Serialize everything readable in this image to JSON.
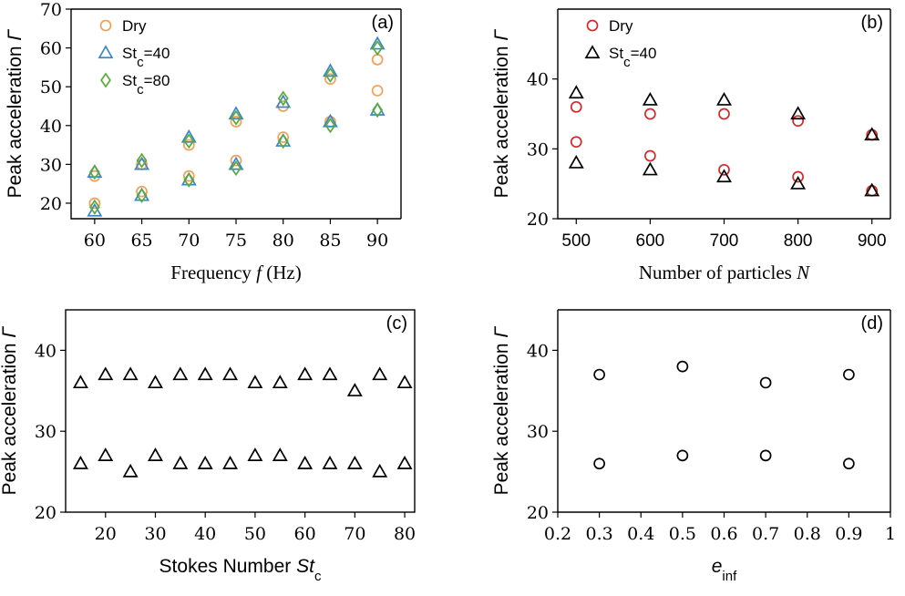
{
  "chart_data": [
    {
      "type": "scatter",
      "panel_label": "(a)",
      "xlabel_prefix": "Frequency ",
      "xlabel_var": "f",
      "xlabel_suffix": " (Hz)",
      "ylabel_prefix": "Peak acceleration ",
      "ylabel_var": "Γ",
      "xlim": [
        57.5,
        92.5
      ],
      "ylim": [
        16,
        70
      ],
      "xticks": [
        60,
        65,
        70,
        75,
        80,
        85,
        90
      ],
      "yticks": [
        20,
        30,
        40,
        50,
        60,
        70
      ],
      "legend_position": "top-left",
      "series": [
        {
          "name": "Dry",
          "marker": "circle",
          "color": "#f0a058",
          "points": [
            [
              60,
              20
            ],
            [
              60,
              27
            ],
            [
              65,
              23
            ],
            [
              65,
              30
            ],
            [
              70,
              27
            ],
            [
              70,
              35
            ],
            [
              75,
              31
            ],
            [
              75,
              41
            ],
            [
              80,
              37
            ],
            [
              80,
              45
            ],
            [
              85,
              41
            ],
            [
              85,
              52
            ],
            [
              90,
              49
            ],
            [
              90,
              57
            ]
          ]
        },
        {
          "name": "St_c=40",
          "marker": "triangle",
          "color": "#3a86c8",
          "points": [
            [
              60,
              18
            ],
            [
              60,
              28
            ],
            [
              65,
              22
            ],
            [
              65,
              30
            ],
            [
              70,
              26
            ],
            [
              70,
              37
            ],
            [
              75,
              30
            ],
            [
              75,
              43
            ],
            [
              80,
              36
            ],
            [
              80,
              46
            ],
            [
              85,
              41
            ],
            [
              85,
              54
            ],
            [
              90,
              44
            ],
            [
              90,
              61
            ]
          ]
        },
        {
          "name": "St_c=80",
          "marker": "diamond",
          "color": "#5aaa3a",
          "points": [
            [
              60,
              19
            ],
            [
              60,
              28
            ],
            [
              65,
              22
            ],
            [
              65,
              31
            ],
            [
              70,
              26
            ],
            [
              70,
              36
            ],
            [
              75,
              29
            ],
            [
              75,
              42
            ],
            [
              80,
              36
            ],
            [
              80,
              47
            ],
            [
              85,
              40
            ],
            [
              85,
              53
            ],
            [
              90,
              44
            ],
            [
              90,
              60
            ]
          ]
        }
      ]
    },
    {
      "type": "scatter",
      "panel_label": "(b)",
      "xlabel_prefix": "Number of particles ",
      "xlabel_var": "N",
      "xlabel_suffix": "",
      "ylabel_prefix": "Peak acceleration ",
      "ylabel_var": "Γ",
      "xlim": [
        475,
        925
      ],
      "ylim": [
        20,
        50
      ],
      "xticks": [
        500,
        600,
        700,
        800,
        900
      ],
      "yticks": [
        20,
        30,
        40
      ],
      "legend_position": "top-left",
      "series": [
        {
          "name": "Dry",
          "marker": "circle",
          "color": "#d62728",
          "points": [
            [
              500,
              31
            ],
            [
              500,
              36
            ],
            [
              600,
              29
            ],
            [
              600,
              35
            ],
            [
              700,
              27
            ],
            [
              700,
              35
            ],
            [
              800,
              26
            ],
            [
              800,
              34
            ],
            [
              900,
              24
            ],
            [
              900,
              32
            ]
          ]
        },
        {
          "name": "St_c=40",
          "marker": "triangle",
          "color": "#000000",
          "points": [
            [
              500,
              28
            ],
            [
              500,
              38
            ],
            [
              600,
              27
            ],
            [
              600,
              37
            ],
            [
              700,
              26
            ],
            [
              700,
              37
            ],
            [
              800,
              25
            ],
            [
              800,
              35
            ],
            [
              900,
              24
            ],
            [
              900,
              32
            ]
          ]
        }
      ]
    },
    {
      "type": "scatter",
      "panel_label": "(c)",
      "xlabel_prefix": "Stokes Number ",
      "xlabel_var": "St",
      "xlabel_sub": "c",
      "ylabel_prefix": "Peak acceleration ",
      "ylabel_var": "Γ",
      "xlim": [
        12,
        82
      ],
      "ylim": [
        20,
        45
      ],
      "xticks": [
        20,
        30,
        40,
        50,
        60,
        70,
        80
      ],
      "yticks": [
        20,
        30,
        40
      ],
      "series": [
        {
          "name": "",
          "marker": "triangle",
          "color": "#000000",
          "points": [
            [
              15,
              36
            ],
            [
              15,
              26
            ],
            [
              20,
              37
            ],
            [
              20,
              27
            ],
            [
              25,
              37
            ],
            [
              25,
              25
            ],
            [
              30,
              36
            ],
            [
              30,
              27
            ],
            [
              35,
              37
            ],
            [
              35,
              26
            ],
            [
              40,
              37
            ],
            [
              40,
              26
            ],
            [
              45,
              37
            ],
            [
              45,
              26
            ],
            [
              50,
              36
            ],
            [
              50,
              27
            ],
            [
              55,
              36
            ],
            [
              55,
              27
            ],
            [
              60,
              37
            ],
            [
              60,
              26
            ],
            [
              65,
              37
            ],
            [
              65,
              26
            ],
            [
              70,
              35
            ],
            [
              70,
              26
            ],
            [
              75,
              37
            ],
            [
              75,
              25
            ],
            [
              80,
              36
            ],
            [
              80,
              26
            ]
          ]
        }
      ]
    },
    {
      "type": "scatter",
      "panel_label": "(d)",
      "xlabel_prefix": "",
      "xlabel_var": "e",
      "xlabel_sub": "inf",
      "ylabel_prefix": "Peak acceleration ",
      "ylabel_var": "Γ",
      "xlim": [
        0.2,
        1.0
      ],
      "ylim": [
        20,
        45
      ],
      "xticks": [
        0.2,
        0.3,
        0.4,
        0.5,
        0.6,
        0.7,
        0.8,
        0.9,
        1
      ],
      "xtick_labels": [
        "0.2",
        "0.3",
        "0.4",
        "0.5",
        "0.6",
        "0.7",
        "0.8",
        "0.9",
        "1"
      ],
      "yticks": [
        20,
        30,
        40
      ],
      "series": [
        {
          "name": "",
          "marker": "circle",
          "color": "#000000",
          "points": [
            [
              0.3,
              37
            ],
            [
              0.3,
              26
            ],
            [
              0.5,
              38
            ],
            [
              0.5,
              27
            ],
            [
              0.7,
              36
            ],
            [
              0.7,
              27
            ],
            [
              0.9,
              37
            ],
            [
              0.9,
              26
            ]
          ]
        }
      ]
    }
  ]
}
